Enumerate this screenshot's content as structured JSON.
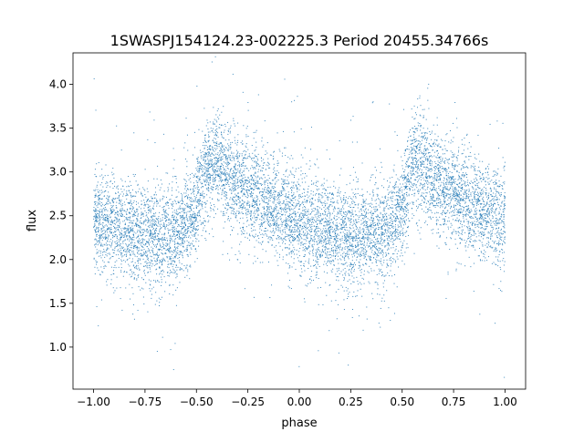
{
  "chart_data": {
    "type": "scatter",
    "title": "1SWASPJ154124.23-002225.3 Period 20455.34766s",
    "xlabel": "phase",
    "ylabel": "flux",
    "xlim": [
      -1.1,
      1.1
    ],
    "ylim": [
      0.52,
      4.36
    ],
    "x_ticks": [
      -1.0,
      -0.75,
      -0.5,
      -0.25,
      0.0,
      0.25,
      0.5,
      0.75,
      1.0
    ],
    "x_tick_labels": [
      "−1.00",
      "−0.75",
      "−0.50",
      "−0.25",
      "0.00",
      "0.25",
      "0.50",
      "0.75",
      "1.00"
    ],
    "y_ticks": [
      1.0,
      1.5,
      2.0,
      2.5,
      3.0,
      3.5,
      4.0
    ],
    "y_tick_labels": [
      "1.0",
      "1.5",
      "2.0",
      "2.5",
      "3.0",
      "3.5",
      "4.0"
    ],
    "grid": false,
    "legend": "none",
    "point_color": "#1f77b4",
    "x": [
      -1.0,
      -0.9,
      -0.8,
      -0.7,
      -0.6,
      -0.55,
      -0.5,
      -0.45,
      -0.4,
      -0.35,
      -0.3,
      -0.2,
      -0.1,
      0.0,
      0.1,
      0.2,
      0.3,
      0.4,
      0.45,
      0.5,
      0.55,
      0.6,
      0.65,
      0.7,
      0.8,
      0.9,
      1.0
    ],
    "y": [
      2.43,
      2.38,
      2.32,
      2.27,
      2.3,
      2.38,
      2.6,
      3.05,
      3.1,
      2.95,
      2.85,
      2.7,
      2.55,
      2.42,
      2.35,
      2.3,
      2.27,
      2.3,
      2.38,
      2.6,
      3.05,
      3.1,
      2.95,
      2.85,
      2.7,
      2.55,
      2.43
    ]
  }
}
